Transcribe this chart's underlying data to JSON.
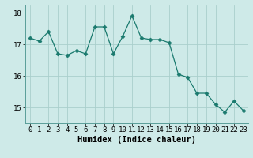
{
  "xlabel": "Humidex (Indice chaleur)",
  "x": [
    0,
    1,
    2,
    3,
    4,
    5,
    6,
    7,
    8,
    9,
    10,
    11,
    12,
    13,
    14,
    15,
    16,
    17,
    18,
    19,
    20,
    21,
    22,
    23
  ],
  "y": [
    17.2,
    17.1,
    17.4,
    16.7,
    16.65,
    16.8,
    16.7,
    17.55,
    17.55,
    16.7,
    17.25,
    17.9,
    17.2,
    17.15,
    17.15,
    17.05,
    16.05,
    15.95,
    15.45,
    15.45,
    15.1,
    14.85,
    15.2,
    14.9
  ],
  "line_color": "#1a7a6e",
  "marker": "D",
  "marker_size": 2.5,
  "bg_color": "#ceeae8",
  "grid_color": "#aacfcc",
  "ylim_min": 14.5,
  "ylim_max": 18.25,
  "xlim_min": -0.5,
  "xlim_max": 23.5,
  "yticks": [
    15,
    16,
    17,
    18
  ],
  "xticks": [
    0,
    1,
    2,
    3,
    4,
    5,
    6,
    7,
    8,
    9,
    10,
    11,
    12,
    13,
    14,
    15,
    16,
    17,
    18,
    19,
    20,
    21,
    22,
    23
  ],
  "xlabel_fontsize": 7.5,
  "tick_fontsize": 6.5
}
